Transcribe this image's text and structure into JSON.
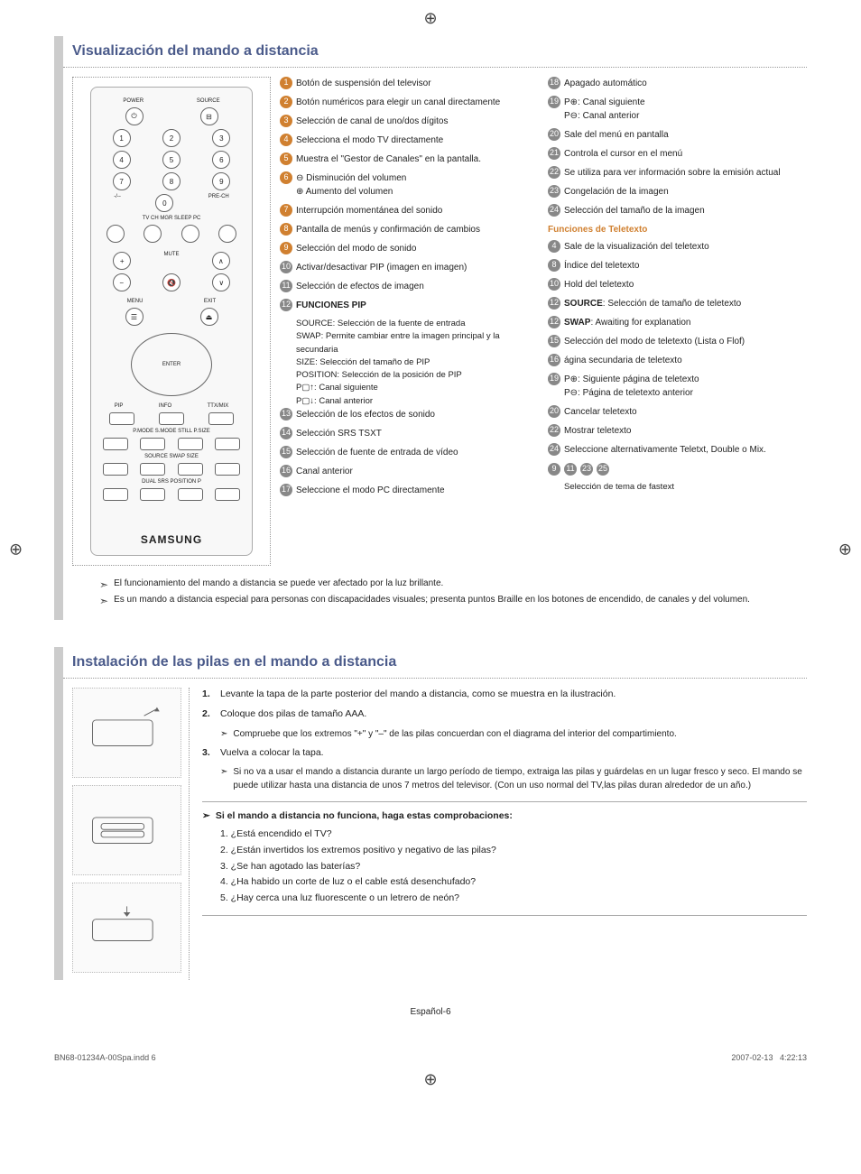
{
  "page": {
    "footer_center": "Español-6",
    "print_left": "BN68-01234A-00Spa.indd   6",
    "print_right_date": "2007-02-13",
    "print_right_time": "4:22:13"
  },
  "section1": {
    "title": "Visualización del mando a distancia",
    "col1": [
      {
        "n": "1",
        "t": "Botón de suspensión del televisor",
        "c": "orange"
      },
      {
        "n": "2",
        "t": "Botón numéricos para elegir un canal directamente",
        "c": "orange"
      },
      {
        "n": "3",
        "t": "Selección de canal de uno/dos dígitos",
        "c": "orange"
      },
      {
        "n": "4",
        "t": "Selecciona el modo TV directamente",
        "c": "orange"
      },
      {
        "n": "5",
        "t": "Muestra el \"Gestor de Canales\" en la pantalla.",
        "c": "orange"
      },
      {
        "n": "6",
        "t": "⊖ Disminución del volumen\n⊕ Aumento del volumen",
        "c": "orange"
      },
      {
        "n": "7",
        "t": "Interrupción momentánea del sonido",
        "c": "orange"
      },
      {
        "n": "8",
        "t": "Pantalla de menús y confirmación de cambios",
        "c": "orange"
      },
      {
        "n": "9",
        "t": "Selección del modo de sonido",
        "c": "orange"
      },
      {
        "n": "10",
        "t": "Activar/desactivar PIP (imagen en imagen)",
        "c": "grey"
      },
      {
        "n": "11",
        "t": "Selección de efectos de imagen",
        "c": "grey"
      }
    ],
    "pip_head": "FUNCIONES PIP",
    "pip_lines": [
      "SOURCE: Selección de la fuente de entrada",
      "SWAP: Permite cambiar entre la imagen principal y la secundaria",
      "SIZE: Selección del tamaño de PIP",
      "POSITION: Selección de la posición de PIP",
      "P▢↑: Canal siguiente",
      "P▢↓: Canal anterior"
    ],
    "col1b": [
      {
        "n": "13",
        "t": "Selección de los efectos de sonido"
      },
      {
        "n": "14",
        "t": "Selección SRS TSXT"
      },
      {
        "n": "15",
        "t": "Selección de fuente de entrada de vídeo"
      },
      {
        "n": "16",
        "t": "Canal anterior"
      },
      {
        "n": "17",
        "t": "Seleccione el modo PC directamente"
      }
    ],
    "col2": [
      {
        "n": "18",
        "t": "Apagado automático"
      },
      {
        "n": "19",
        "t": "P⊕: Canal siguiente\nP⊖: Canal anterior"
      },
      {
        "n": "20",
        "t": "Sale del menú en pantalla"
      },
      {
        "n": "21",
        "t": "Controla el cursor en el menú"
      },
      {
        "n": "22",
        "t": "Se utiliza para ver información sobre la emisión actual"
      },
      {
        "n": "23",
        "t": "Congelación de la imagen"
      },
      {
        "n": "24",
        "t": "Selección del tamaño de la imagen"
      }
    ],
    "teletext_head": "Funciones de Teletexto",
    "teletext": [
      {
        "n": "4",
        "t": "Sale de la visualización del teletexto"
      },
      {
        "n": "8",
        "t": "Índice del teletexto"
      },
      {
        "n": "10",
        "t": "Hold del teletexto"
      },
      {
        "n": "12",
        "t": "SOURCE: Selección de tamaño de teletexto",
        "bold": "SOURCE"
      },
      {
        "n": "12",
        "t": "SWAP: Awaiting for explanation",
        "bold": "SWAP"
      },
      {
        "n": "15",
        "t": "Selección del modo de teletexto (Lista o Flof)"
      },
      {
        "n": "16",
        "t": "ágina secundaria de teletexto"
      },
      {
        "n": "19",
        "t": "P⊕: Siguiente página de teletexto\nP⊖: Página de teletexto anterior"
      },
      {
        "n": "20",
        "t": "Cancelar teletexto"
      },
      {
        "n": "22",
        "t": "Mostrar teletexto"
      },
      {
        "n": "24",
        "t": "Seleccione alternativamente Teletxt, Double o Mix."
      }
    ],
    "fastext_nums": "9 11 23 25",
    "fastext_label": "Selección de tema de fastext",
    "notes": [
      "El funcionamiento del mando a distancia se puede ver afectado por la luz brillante.",
      "Es un mando a distancia especial para personas con discapacidades visuales; presenta puntos Braille en los botones de encendido, de canales y del volumen."
    ],
    "samsung": "SAMSUNG"
  },
  "section2": {
    "title": "Instalación de las pilas en el mando a distancia",
    "steps": [
      {
        "n": "1.",
        "t": "Levante la tapa de la parte posterior del mando a distancia, como se muestra en la ilustración."
      },
      {
        "n": "2.",
        "t": "Coloque dos pilas de tamaño AAA.",
        "sub": "Compruebe que los extremos \"+\" y \"–\" de las pilas concuerdan con el diagrama del interior del compartimiento."
      },
      {
        "n": "3.",
        "t": "Vuelva a colocar la tapa.",
        "sub": "Si no va a usar el mando a distancia durante un largo período de tiempo, extraiga las pilas y guárdelas en un lugar fresco y seco. El mando se puede utilizar hasta una distancia de unos 7 metros del televisor. (Con un uso normal del TV,las pilas duran alrededor de un año.)"
      }
    ],
    "troubleshoot_head": "Si el mando a distancia no funciona, haga estas comprobaciones:",
    "troubleshoot": [
      "1. ¿Está encendido el TV?",
      "2. ¿Están invertidos los extremos positivo y negativo de las pilas?",
      "3. ¿Se han agotado las baterías?",
      "4. ¿Ha habido un corte de luz o el cable está desenchufado?",
      "5. ¿Hay cerca una luz fluorescente o un letrero de neón?"
    ]
  }
}
